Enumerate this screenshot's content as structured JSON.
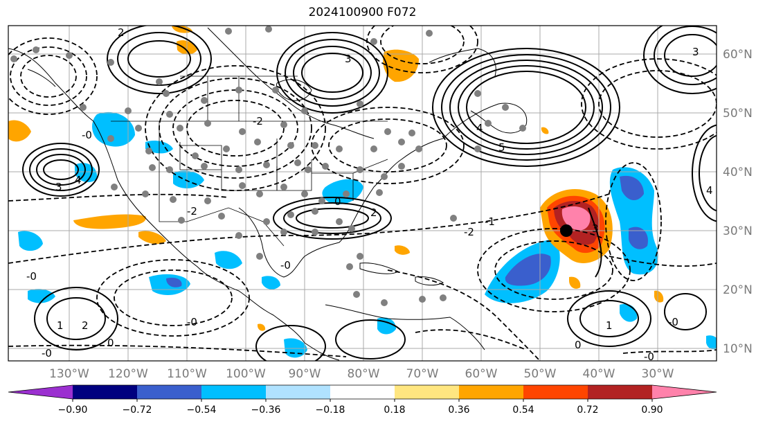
{
  "title": "2024100900 F072",
  "lon_labels": [
    "130°W",
    "120°W",
    "110°W",
    "100°W",
    "90°W",
    "80°W",
    "70°W",
    "60°W",
    "50°W",
    "40°W",
    "30°W"
  ],
  "lat_labels": [
    "60°N",
    "50°N",
    "40°N",
    "30°N",
    "20°N",
    "10°N"
  ],
  "colorbar": {
    "ticks": [
      "−0.90",
      "−0.72",
      "−0.54",
      "−0.36",
      "−0.18",
      "0.18",
      "0.36",
      "0.54",
      "0.72",
      "0.90"
    ],
    "colors": [
      "#9b30d0",
      "#00007f",
      "#3a5fcd",
      "#00bfff",
      "#b0e2ff",
      "#ffffff",
      "#ffe680",
      "#ffa500",
      "#ff4500",
      "#b22222",
      "#ff82ab"
    ]
  },
  "contour_labels": [
    "0",
    "1",
    "2",
    "3",
    "4",
    "5",
    "-0",
    "-1",
    "-2"
  ],
  "marker": "storm-center"
}
